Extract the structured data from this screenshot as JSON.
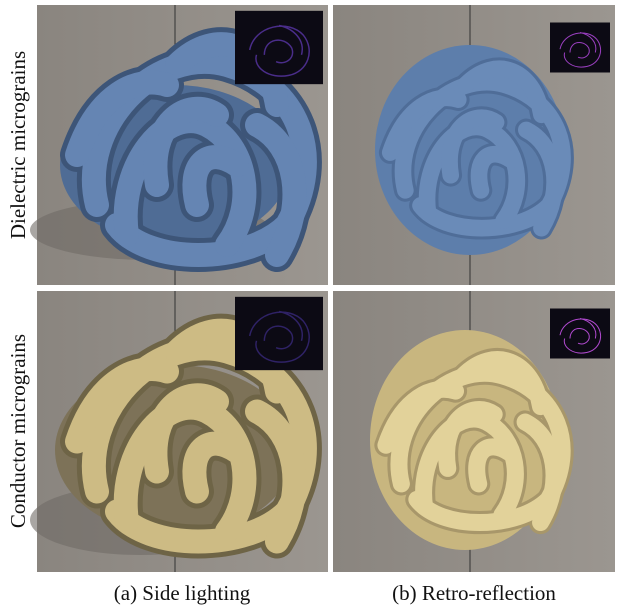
{
  "rows": [
    {
      "label": "Dielectric micrograins"
    },
    {
      "label": "Conductor micrograins"
    }
  ],
  "columns": [
    {
      "caption": "(a) Side lighting"
    },
    {
      "caption": "(b) Retro-reflection"
    }
  ]
}
